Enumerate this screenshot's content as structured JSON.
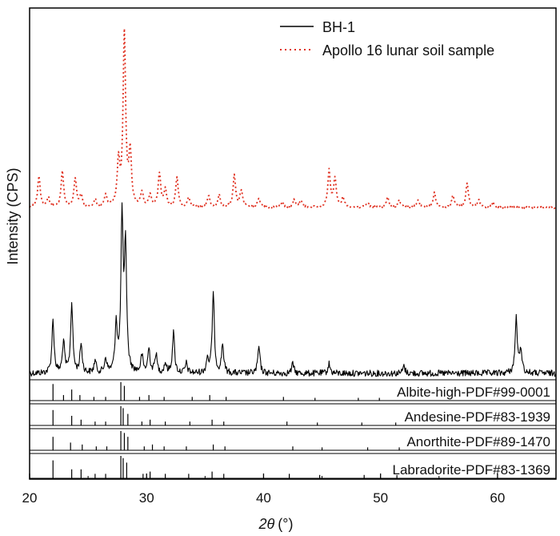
{
  "chart_data": {
    "type": "line",
    "xlabel_italic": "2θ",
    "xlabel_unit": "(°)",
    "ylabel": "Intensity (CPS)",
    "xlim": [
      20,
      65
    ],
    "xticks": [
      20,
      30,
      40,
      50,
      60
    ],
    "yticks_shown": false,
    "legend_position": "top-right",
    "series": [
      {
        "name": "BH-1",
        "style": "solid",
        "color": "#000000",
        "peaks": [
          {
            "x": 22.0,
            "y": 0.22
          },
          {
            "x": 22.9,
            "y": 0.13
          },
          {
            "x": 23.6,
            "y": 0.29
          },
          {
            "x": 24.4,
            "y": 0.12
          },
          {
            "x": 25.6,
            "y": 0.05
          },
          {
            "x": 26.5,
            "y": 0.06
          },
          {
            "x": 27.4,
            "y": 0.2
          },
          {
            "x": 27.9,
            "y": 0.64
          },
          {
            "x": 28.2,
            "y": 0.52
          },
          {
            "x": 29.6,
            "y": 0.07
          },
          {
            "x": 30.2,
            "y": 0.1
          },
          {
            "x": 30.8,
            "y": 0.08
          },
          {
            "x": 31.6,
            "y": 0.04
          },
          {
            "x": 32.3,
            "y": 0.17
          },
          {
            "x": 33.4,
            "y": 0.04
          },
          {
            "x": 35.2,
            "y": 0.06
          },
          {
            "x": 35.7,
            "y": 0.33
          },
          {
            "x": 36.5,
            "y": 0.12
          },
          {
            "x": 39.6,
            "y": 0.11
          },
          {
            "x": 42.5,
            "y": 0.04
          },
          {
            "x": 45.6,
            "y": 0.04
          },
          {
            "x": 52.0,
            "y": 0.03
          },
          {
            "x": 61.6,
            "y": 0.23
          },
          {
            "x": 62.0,
            "y": 0.1
          }
        ]
      },
      {
        "name": "Apollo 16 lunar soil sample",
        "style": "dotted",
        "color": "#e03020",
        "peaks": [
          {
            "x": 20.8,
            "y": 0.13
          },
          {
            "x": 21.6,
            "y": 0.04
          },
          {
            "x": 22.8,
            "y": 0.15
          },
          {
            "x": 23.9,
            "y": 0.12
          },
          {
            "x": 24.4,
            "y": 0.05
          },
          {
            "x": 25.6,
            "y": 0.03
          },
          {
            "x": 26.5,
            "y": 0.05
          },
          {
            "x": 27.6,
            "y": 0.18
          },
          {
            "x": 28.1,
            "y": 0.72
          },
          {
            "x": 28.6,
            "y": 0.22
          },
          {
            "x": 29.6,
            "y": 0.06
          },
          {
            "x": 30.3,
            "y": 0.05
          },
          {
            "x": 31.1,
            "y": 0.14
          },
          {
            "x": 31.6,
            "y": 0.07
          },
          {
            "x": 32.6,
            "y": 0.12
          },
          {
            "x": 33.6,
            "y": 0.04
          },
          {
            "x": 35.3,
            "y": 0.05
          },
          {
            "x": 36.2,
            "y": 0.05
          },
          {
            "x": 37.5,
            "y": 0.13
          },
          {
            "x": 38.1,
            "y": 0.07
          },
          {
            "x": 39.6,
            "y": 0.04
          },
          {
            "x": 41.6,
            "y": 0.02
          },
          {
            "x": 42.6,
            "y": 0.03
          },
          {
            "x": 43.2,
            "y": 0.03
          },
          {
            "x": 45.6,
            "y": 0.15
          },
          {
            "x": 46.1,
            "y": 0.12
          },
          {
            "x": 46.8,
            "y": 0.04
          },
          {
            "x": 48.9,
            "y": 0.02
          },
          {
            "x": 50.6,
            "y": 0.04
          },
          {
            "x": 51.6,
            "y": 0.03
          },
          {
            "x": 53.2,
            "y": 0.03
          },
          {
            "x": 54.6,
            "y": 0.06
          },
          {
            "x": 56.2,
            "y": 0.05
          },
          {
            "x": 57.4,
            "y": 0.1
          },
          {
            "x": 58.4,
            "y": 0.03
          },
          {
            "x": 59.6,
            "y": 0.02
          }
        ]
      }
    ],
    "references": [
      {
        "name": "Albite-high-PDF#99-0001",
        "lines": [
          {
            "x": 22.0,
            "h": 0.9
          },
          {
            "x": 22.9,
            "h": 0.3
          },
          {
            "x": 23.6,
            "h": 0.6
          },
          {
            "x": 24.3,
            "h": 0.3
          },
          {
            "x": 25.5,
            "h": 0.2
          },
          {
            "x": 26.5,
            "h": 0.2
          },
          {
            "x": 27.8,
            "h": 1.0
          },
          {
            "x": 28.1,
            "h": 0.8
          },
          {
            "x": 29.4,
            "h": 0.2
          },
          {
            "x": 30.2,
            "h": 0.3
          },
          {
            "x": 31.5,
            "h": 0.2
          },
          {
            "x": 33.9,
            "h": 0.2
          },
          {
            "x": 35.4,
            "h": 0.3
          },
          {
            "x": 36.8,
            "h": 0.2
          },
          {
            "x": 41.7,
            "h": 0.2
          },
          {
            "x": 44.4,
            "h": 0.15
          },
          {
            "x": 48.1,
            "h": 0.15
          },
          {
            "x": 49.9,
            "h": 0.15
          }
        ]
      },
      {
        "name": "Andesine-PDF#83-1939",
        "lines": [
          {
            "x": 22.0,
            "h": 0.8
          },
          {
            "x": 23.6,
            "h": 0.5
          },
          {
            "x": 24.4,
            "h": 0.3
          },
          {
            "x": 25.6,
            "h": 0.2
          },
          {
            "x": 26.5,
            "h": 0.2
          },
          {
            "x": 27.8,
            "h": 1.0
          },
          {
            "x": 28.0,
            "h": 0.9
          },
          {
            "x": 28.4,
            "h": 0.6
          },
          {
            "x": 29.6,
            "h": 0.2
          },
          {
            "x": 30.3,
            "h": 0.3
          },
          {
            "x": 31.6,
            "h": 0.2
          },
          {
            "x": 33.7,
            "h": 0.2
          },
          {
            "x": 35.6,
            "h": 0.3
          },
          {
            "x": 36.6,
            "h": 0.2
          },
          {
            "x": 42.0,
            "h": 0.2
          },
          {
            "x": 44.6,
            "h": 0.15
          },
          {
            "x": 48.4,
            "h": 0.15
          },
          {
            "x": 51.3,
            "h": 0.15
          }
        ]
      },
      {
        "name": "Anorthite-PDF#89-1470",
        "lines": [
          {
            "x": 22.0,
            "h": 0.7
          },
          {
            "x": 23.5,
            "h": 0.4
          },
          {
            "x": 24.5,
            "h": 0.3
          },
          {
            "x": 25.7,
            "h": 0.2
          },
          {
            "x": 26.6,
            "h": 0.2
          },
          {
            "x": 27.8,
            "h": 1.0
          },
          {
            "x": 28.1,
            "h": 0.9
          },
          {
            "x": 28.4,
            "h": 0.7
          },
          {
            "x": 29.8,
            "h": 0.2
          },
          {
            "x": 30.5,
            "h": 0.3
          },
          {
            "x": 31.5,
            "h": 0.2
          },
          {
            "x": 33.4,
            "h": 0.2
          },
          {
            "x": 35.7,
            "h": 0.3
          },
          {
            "x": 36.7,
            "h": 0.2
          },
          {
            "x": 42.5,
            "h": 0.2
          },
          {
            "x": 45.0,
            "h": 0.15
          },
          {
            "x": 48.9,
            "h": 0.15
          },
          {
            "x": 51.6,
            "h": 0.15
          }
        ]
      },
      {
        "name": "Labradorite-PDF#83-1369",
        "lines": [
          {
            "x": 22.0,
            "h": 0.8
          },
          {
            "x": 23.6,
            "h": 0.4
          },
          {
            "x": 24.4,
            "h": 0.4
          },
          {
            "x": 25.6,
            "h": 0.2
          },
          {
            "x": 26.5,
            "h": 0.2
          },
          {
            "x": 27.8,
            "h": 1.0
          },
          {
            "x": 28.0,
            "h": 0.9
          },
          {
            "x": 28.3,
            "h": 0.7
          },
          {
            "x": 29.7,
            "h": 0.2
          },
          {
            "x": 30.3,
            "h": 0.3
          },
          {
            "x": 31.6,
            "h": 0.2
          },
          {
            "x": 33.6,
            "h": 0.2
          },
          {
            "x": 35.6,
            "h": 0.3
          },
          {
            "x": 36.6,
            "h": 0.2
          },
          {
            "x": 42.2,
            "h": 0.2
          },
          {
            "x": 44.8,
            "h": 0.15
          },
          {
            "x": 48.6,
            "h": 0.15
          },
          {
            "x": 51.4,
            "h": 0.15
          }
        ]
      }
    ]
  }
}
